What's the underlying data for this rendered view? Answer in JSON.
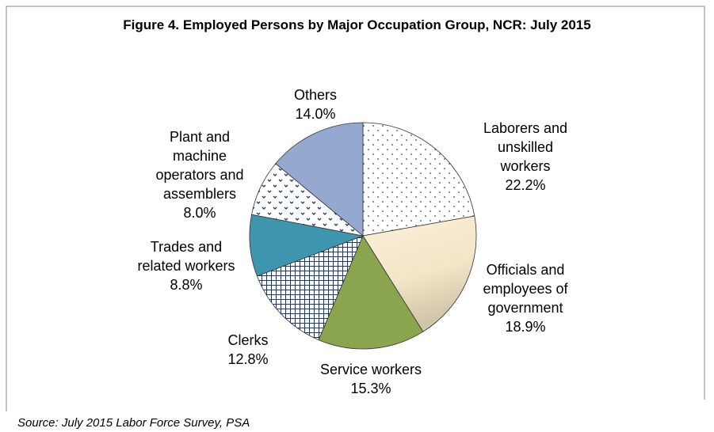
{
  "chart_data": {
    "type": "pie",
    "title": "Figure 4. Employed Persons by Major Occupation Group, NCR: July 2015",
    "categories": [
      "Laborers and unskilled workers",
      "Officials and employees of government",
      "Service workers",
      "Clerks",
      "Trades and related workers",
      "Plant and machine operators and assemblers",
      "Others"
    ],
    "values": [
      22.2,
      18.9,
      15.3,
      12.8,
      8.8,
      8.0,
      14.0
    ],
    "value_labels": [
      "22.2%",
      "18.9%",
      "15.3%",
      "12.8%",
      "8.8%",
      "8.0%",
      "14.0%"
    ],
    "colors": [
      "#ffffff",
      "#f6e8cc",
      "#8aa54e",
      "#ffffff",
      "#3e95ae",
      "#ffffff",
      "#94a8d0"
    ],
    "source": "Source: July 2015 Labor Force Survey, PSA"
  }
}
